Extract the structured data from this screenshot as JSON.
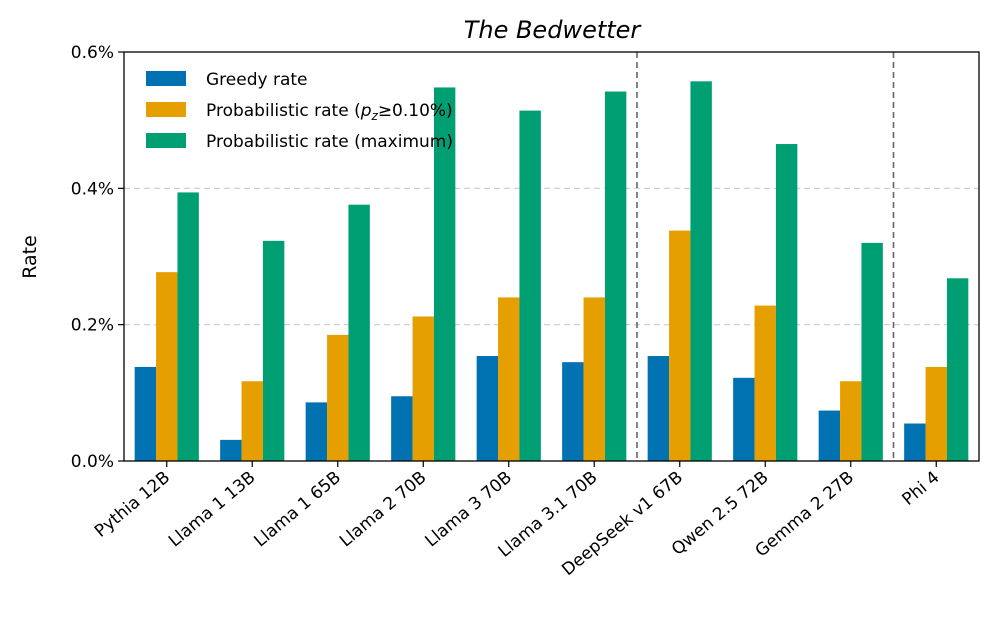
{
  "chart_data": {
    "type": "bar",
    "title": "The Bedwetter",
    "xlabel": "",
    "ylabel": "Rate",
    "ylim": [
      0,
      0.6
    ],
    "yticks": [
      0.0,
      0.2,
      0.4,
      0.6
    ],
    "ytick_labels": [
      "0.0%",
      "0.2%",
      "0.4%",
      "0.6%"
    ],
    "grid": "horizontal dashed",
    "legend_position": "top-left",
    "categories": [
      "Pythia 12B",
      "Llama 1 13B",
      "Llama 1 65B",
      "Llama 2 70B",
      "Llama 3 70B",
      "Llama 3.1 70B",
      "DeepSeek v1 67B",
      "Qwen 2.5 72B",
      "Gemma 2 27B",
      "Phi 4"
    ],
    "series": [
      {
        "name": "Greedy rate",
        "color": "#0072b2",
        "values": [
          0.138,
          0.031,
          0.086,
          0.095,
          0.154,
          0.145,
          0.154,
          0.122,
          0.074,
          0.055
        ]
      },
      {
        "name": "Probabilistic rate (pz≥0.10%)",
        "legend_math": {
          "prefix": "Probabilistic rate (",
          "var": "p",
          "sub": "z",
          "suffix": "≥0.10%)"
        },
        "color": "#e69f00",
        "values": [
          0.277,
          0.117,
          0.185,
          0.212,
          0.24,
          0.24,
          0.338,
          0.228,
          0.117,
          0.138
        ]
      },
      {
        "name": "Probabilistic rate (maximum)",
        "color": "#009e73",
        "values": [
          0.394,
          0.323,
          0.376,
          0.548,
          0.514,
          0.542,
          0.557,
          0.465,
          0.32,
          0.268
        ]
      }
    ],
    "group_separators_after": [
      "Llama 3.1 70B",
      "Gemma 2 27B"
    ]
  }
}
